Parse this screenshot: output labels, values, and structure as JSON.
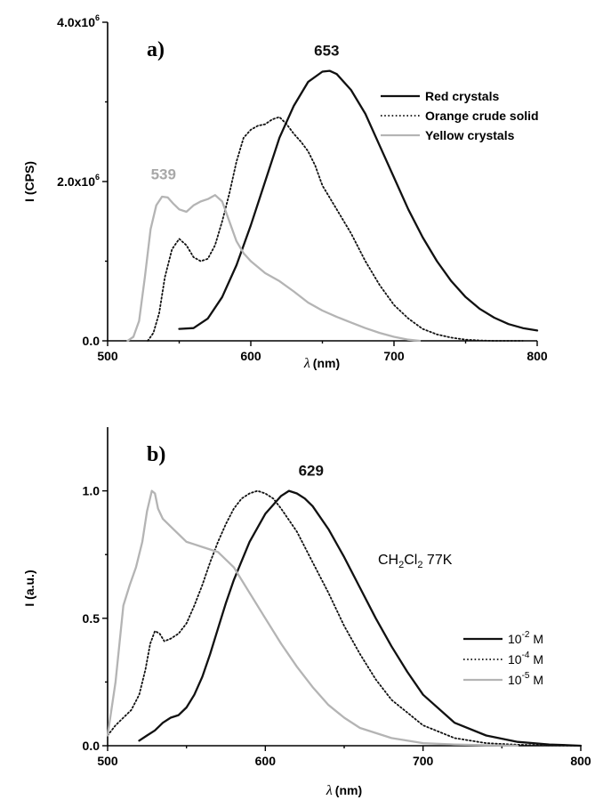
{
  "chart_data": [
    {
      "type": "line",
      "panel_label": "a)",
      "xlabel_symbol": "λ",
      "xlabel_unit": "(nm)",
      "ylabel": "I (CPS)",
      "xlim": [
        500,
        800
      ],
      "ylim": [
        0,
        4000000
      ],
      "xticks": [
        {
          "value": 500,
          "label": "500"
        },
        {
          "value": 600,
          "label": "600"
        },
        {
          "value": 700,
          "label": "700"
        },
        {
          "value": 800,
          "label": "800"
        }
      ],
      "yticks": [
        {
          "value": 0,
          "mantissa": "0.0",
          "exp": ""
        },
        {
          "value": 2000000,
          "mantissa": "2.0x10",
          "exp": "6"
        },
        {
          "value": 4000000,
          "mantissa": "4.0x10",
          "exp": "6"
        }
      ],
      "annotations": [
        {
          "text": "653",
          "x": 653,
          "y": 3580000,
          "color": "#111111"
        },
        {
          "text": "539",
          "x": 539,
          "y": 2030000,
          "color": "#a8a8a8"
        }
      ],
      "legend_position": "top-right",
      "series": [
        {
          "name": "Red crystals",
          "color": "#111111",
          "style": "solid",
          "x": [
            550,
            560,
            570,
            580,
            590,
            600,
            610,
            620,
            630,
            640,
            650,
            655,
            660,
            670,
            680,
            690,
            700,
            710,
            720,
            730,
            740,
            750,
            760,
            770,
            780,
            790,
            800
          ],
          "y": [
            150000,
            160000,
            280000,
            550000,
            950000,
            1450000,
            2000000,
            2550000,
            2950000,
            3250000,
            3380000,
            3390000,
            3350000,
            3150000,
            2850000,
            2450000,
            2050000,
            1650000,
            1300000,
            1000000,
            750000,
            550000,
            400000,
            290000,
            210000,
            160000,
            130000
          ]
        },
        {
          "name": "Orange crude solid",
          "color": "#111111",
          "style": "dotted",
          "x": [
            528,
            532,
            536,
            540,
            545,
            550,
            555,
            560,
            565,
            570,
            575,
            580,
            585,
            590,
            595,
            600,
            605,
            610,
            615,
            620,
            625,
            630,
            635,
            640,
            645,
            650,
            660,
            670,
            680,
            690,
            700,
            710,
            720,
            730,
            740,
            750,
            760,
            770,
            780,
            790
          ],
          "y": [
            0,
            100000,
            350000,
            800000,
            1150000,
            1280000,
            1200000,
            1050000,
            1000000,
            1030000,
            1200000,
            1500000,
            1850000,
            2250000,
            2550000,
            2650000,
            2700000,
            2720000,
            2780000,
            2810000,
            2720000,
            2600000,
            2500000,
            2380000,
            2200000,
            1950000,
            1650000,
            1350000,
            1000000,
            700000,
            450000,
            280000,
            150000,
            80000,
            40000,
            15000,
            5000,
            0,
            0,
            0
          ]
        },
        {
          "name": "Yellow crystals",
          "color": "#b4b4b4",
          "style": "solid",
          "x": [
            514,
            518,
            522,
            526,
            530,
            534,
            538,
            542,
            546,
            550,
            555,
            560,
            565,
            570,
            575,
            580,
            585,
            590,
            595,
            600,
            610,
            620,
            630,
            640,
            650,
            660,
            670,
            680,
            690,
            700,
            710,
            718
          ],
          "y": [
            0,
            50000,
            250000,
            800000,
            1400000,
            1700000,
            1810000,
            1800000,
            1720000,
            1650000,
            1620000,
            1700000,
            1750000,
            1780000,
            1830000,
            1750000,
            1500000,
            1250000,
            1100000,
            1000000,
            850000,
            750000,
            620000,
            480000,
            380000,
            300000,
            230000,
            160000,
            100000,
            50000,
            15000,
            0
          ]
        }
      ]
    },
    {
      "type": "line",
      "panel_label": "b)",
      "xlabel_symbol": "λ",
      "xlabel_unit": "(nm)",
      "ylabel": "I (a.u.)",
      "xlim": [
        500,
        800
      ],
      "ylim": [
        0,
        1.25
      ],
      "xticks": [
        {
          "value": 500,
          "label": "500"
        },
        {
          "value": 600,
          "label": "600"
        },
        {
          "value": 700,
          "label": "700"
        },
        {
          "value": 800,
          "label": "800"
        }
      ],
      "yticks": [
        {
          "value": 0,
          "label": "0.0"
        },
        {
          "value": 0.5,
          "label": "0.5"
        },
        {
          "value": 1.0,
          "label": "1.0"
        }
      ],
      "annotations": [
        {
          "text": "629",
          "x": 629,
          "y": 1.06,
          "color": "#111111"
        }
      ],
      "condition_text": {
        "main": "CH",
        "sub1": "2",
        "mid": "Cl",
        "sub2": "2",
        "rest": " 77K"
      },
      "legend_position": "right",
      "series": [
        {
          "name_base": "10",
          "name_exp": "-2",
          "name_unit": " M",
          "color": "#111111",
          "style": "solid",
          "x": [
            520,
            525,
            530,
            535,
            540,
            545,
            550,
            555,
            560,
            565,
            570,
            575,
            580,
            590,
            600,
            610,
            615,
            620,
            625,
            630,
            640,
            650,
            660,
            670,
            680,
            690,
            700,
            720,
            740,
            760,
            780,
            800
          ],
          "y": [
            0.02,
            0.04,
            0.06,
            0.09,
            0.11,
            0.12,
            0.15,
            0.2,
            0.27,
            0.36,
            0.46,
            0.56,
            0.65,
            0.8,
            0.91,
            0.98,
            1.0,
            0.99,
            0.97,
            0.94,
            0.85,
            0.74,
            0.62,
            0.5,
            0.39,
            0.29,
            0.2,
            0.09,
            0.04,
            0.015,
            0.005,
            0.0
          ]
        },
        {
          "name_base": "10",
          "name_exp": "-4",
          "name_unit": " M",
          "color": "#111111",
          "style": "dotted",
          "x": [
            500,
            505,
            510,
            515,
            520,
            524,
            527,
            530,
            533,
            536,
            540,
            545,
            550,
            555,
            560,
            565,
            570,
            575,
            580,
            585,
            590,
            595,
            600,
            605,
            610,
            620,
            630,
            640,
            650,
            660,
            670,
            680,
            700,
            720,
            740,
            760,
            780,
            800
          ],
          "y": [
            0.04,
            0.08,
            0.11,
            0.14,
            0.2,
            0.3,
            0.4,
            0.45,
            0.44,
            0.41,
            0.42,
            0.44,
            0.48,
            0.55,
            0.63,
            0.72,
            0.8,
            0.87,
            0.93,
            0.97,
            0.99,
            1.0,
            0.99,
            0.97,
            0.93,
            0.84,
            0.72,
            0.6,
            0.47,
            0.36,
            0.26,
            0.18,
            0.08,
            0.03,
            0.01,
            0.004,
            0.001,
            0.0
          ]
        },
        {
          "name_base": "10",
          "name_exp": "-5",
          "name_unit": " M",
          "color": "#b4b4b4",
          "style": "solid",
          "x": [
            500,
            505,
            510,
            514,
            518,
            522,
            525,
            528,
            530,
            532,
            535,
            540,
            545,
            550,
            555,
            560,
            565,
            570,
            575,
            580,
            590,
            600,
            610,
            620,
            630,
            640,
            650,
            660,
            680,
            700,
            720,
            740,
            760
          ],
          "y": [
            0.04,
            0.25,
            0.55,
            0.63,
            0.7,
            0.8,
            0.92,
            1.0,
            0.99,
            0.93,
            0.89,
            0.86,
            0.83,
            0.8,
            0.79,
            0.78,
            0.77,
            0.76,
            0.73,
            0.7,
            0.6,
            0.5,
            0.4,
            0.31,
            0.23,
            0.16,
            0.11,
            0.07,
            0.03,
            0.01,
            0.005,
            0.002,
            0.0
          ]
        }
      ]
    }
  ]
}
